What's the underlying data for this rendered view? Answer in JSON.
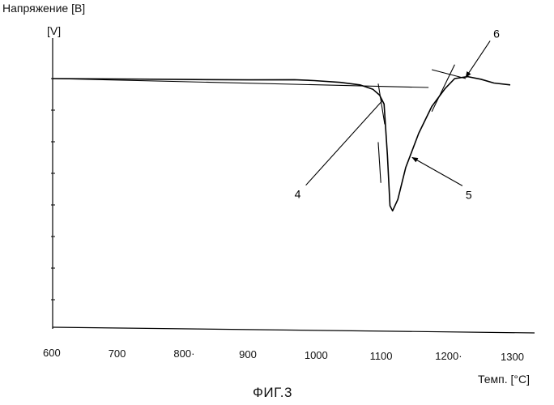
{
  "chart_data": {
    "type": "line",
    "ylabel": "Напряжение [B]",
    "yunit": "[V]",
    "xlabel": "Темп. [°C]",
    "caption": "ФИГ.3",
    "xlim": [
      600,
      1300
    ],
    "x_ticks": [
      600,
      700,
      800,
      900,
      1000,
      1100,
      1200,
      1300
    ],
    "x_tick_labels": [
      "600",
      "700",
      "800·",
      "900",
      "1000",
      "1100",
      "1200·",
      "1300"
    ],
    "y_ticks_count": 8,
    "grid": false,
    "curve": {
      "x": [
        600,
        700,
        800,
        900,
        970,
        1000,
        1040,
        1070,
        1090,
        1100,
        1107,
        1112,
        1116,
        1120,
        1128,
        1140,
        1160,
        1180,
        1200,
        1215,
        1235,
        1255,
        1275,
        1300
      ],
      "y": [
        0.0,
        -0.3,
        -0.7,
        -1.0,
        -0.9,
        -1.6,
        -3.0,
        -5.0,
        -8.5,
        -13.0,
        -20.0,
        -60.0,
        -100.0,
        -104.0,
        -95.0,
        -70.0,
        -43.0,
        -22.0,
        -8.0,
        0.0,
        1.5,
        -0.5,
        -3.5,
        -5.0
      ]
    },
    "tangent_lines": [
      {
        "x": [
          600,
          1175
        ],
        "y": [
          0.0,
          -7.0
        ]
      },
      {
        "x": [
          1098,
          1108
        ],
        "y": [
          -4.0,
          -36.0
        ]
      },
      {
        "x": [
          1098,
          1102
        ],
        "y": [
          -50.0,
          -82.0
        ]
      },
      {
        "x": [
          1180,
          1215
        ],
        "y": [
          -26.0,
          11.0
        ]
      },
      {
        "x": [
          1180,
          1232
        ],
        "y": [
          7.0,
          0.0
        ]
      }
    ],
    "annotations": [
      {
        "text": "4",
        "point_x": 1105,
        "point_y": -17.0
      },
      {
        "text": "5",
        "point_x": 1150,
        "point_y": -62.0
      },
      {
        "text": "6",
        "point_x": 1232,
        "point_y": 1.0
      }
    ]
  }
}
